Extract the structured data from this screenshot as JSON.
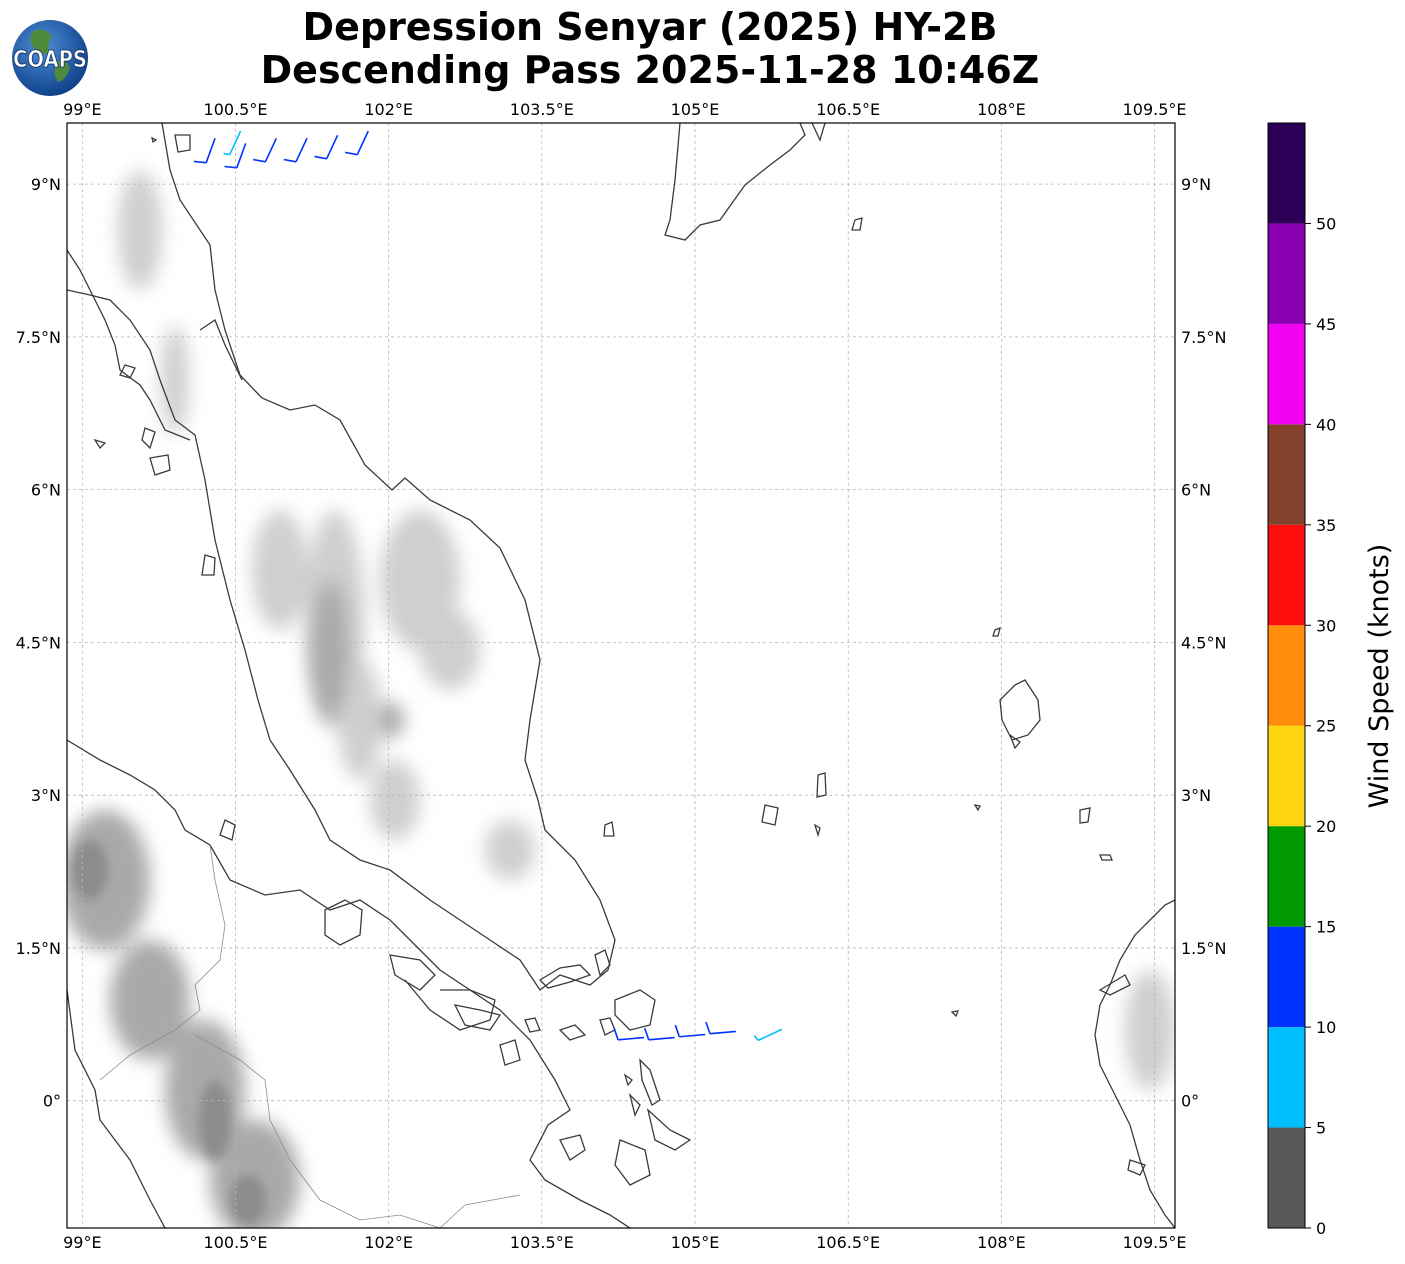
{
  "title_line1": "Depression Senyar (2025) HY-2B",
  "title_line2": "Descending Pass 2025-11-28 10:46Z",
  "logo_text": "COAPS",
  "map": {
    "lon_range": [
      98.85,
      109.7
    ],
    "lat_range": [
      -1.25,
      9.6
    ],
    "lon_ticks": [
      {
        "value": 99.0,
        "label": "99°E"
      },
      {
        "value": 100.5,
        "label": "100.5°E"
      },
      {
        "value": 102.0,
        "label": "102°E"
      },
      {
        "value": 103.5,
        "label": "103.5°E"
      },
      {
        "value": 105.0,
        "label": "105°E"
      },
      {
        "value": 106.5,
        "label": "106.5°E"
      },
      {
        "value": 108.0,
        "label": "108°E"
      },
      {
        "value": 109.5,
        "label": "109.5°E"
      }
    ],
    "lat_ticks": [
      {
        "value": 9.0,
        "label": "9°N"
      },
      {
        "value": 7.5,
        "label": "7.5°N"
      },
      {
        "value": 6.0,
        "label": "6°N"
      },
      {
        "value": 4.5,
        "label": "4.5°N"
      },
      {
        "value": 3.0,
        "label": "3°N"
      },
      {
        "value": 1.5,
        "label": "1.5°N"
      },
      {
        "value": 0.0,
        "label": "0°"
      }
    ],
    "gridlines": true,
    "wind_barbs": [
      {
        "lon": 100.3,
        "lat": 9.45,
        "speed_kt": 12,
        "dir_deg": 200
      },
      {
        "lon": 100.55,
        "lat": 9.52,
        "speed_kt": 7,
        "dir_deg": 205
      },
      {
        "lon": 100.6,
        "lat": 9.4,
        "speed_kt": 12,
        "dir_deg": 200
      },
      {
        "lon": 100.9,
        "lat": 9.45,
        "speed_kt": 12,
        "dir_deg": 205
      },
      {
        "lon": 101.2,
        "lat": 9.45,
        "speed_kt": 12,
        "dir_deg": 205
      },
      {
        "lon": 101.5,
        "lat": 9.48,
        "speed_kt": 12,
        "dir_deg": 205
      },
      {
        "lon": 101.8,
        "lat": 9.52,
        "speed_kt": 12,
        "dir_deg": 205
      },
      {
        "lon": 104.5,
        "lat": 0.62,
        "speed_kt": 12,
        "dir_deg": 265
      },
      {
        "lon": 104.8,
        "lat": 0.62,
        "speed_kt": 12,
        "dir_deg": 265
      },
      {
        "lon": 105.1,
        "lat": 0.65,
        "speed_kt": 12,
        "dir_deg": 265
      },
      {
        "lon": 105.4,
        "lat": 0.68,
        "speed_kt": 12,
        "dir_deg": 265
      },
      {
        "lon": 105.85,
        "lat": 0.7,
        "speed_kt": 7,
        "dir_deg": 245
      }
    ]
  },
  "colorbar": {
    "label": "Wind Speed (knots)",
    "bins": [
      {
        "from": 0,
        "to": 5,
        "color": "#595959"
      },
      {
        "from": 5,
        "to": 10,
        "color": "#00bfff"
      },
      {
        "from": 10,
        "to": 15,
        "color": "#0033ff"
      },
      {
        "from": 15,
        "to": 20,
        "color": "#009900"
      },
      {
        "from": 20,
        "to": 25,
        "color": "#ffd511"
      },
      {
        "from": 25,
        "to": 30,
        "color": "#ff8c0a"
      },
      {
        "from": 30,
        "to": 35,
        "color": "#ff0d0d"
      },
      {
        "from": 35,
        "to": 40,
        "color": "#83402a"
      },
      {
        "from": 40,
        "to": 45,
        "color": "#f200f2"
      },
      {
        "from": 45,
        "to": 50,
        "color": "#8800b0"
      },
      {
        "from": 50,
        "to": 55,
        "color": "#2c0056"
      }
    ],
    "ticks": [
      "0",
      "5",
      "10",
      "15",
      "20",
      "25",
      "30",
      "35",
      "40",
      "45",
      "50"
    ]
  }
}
